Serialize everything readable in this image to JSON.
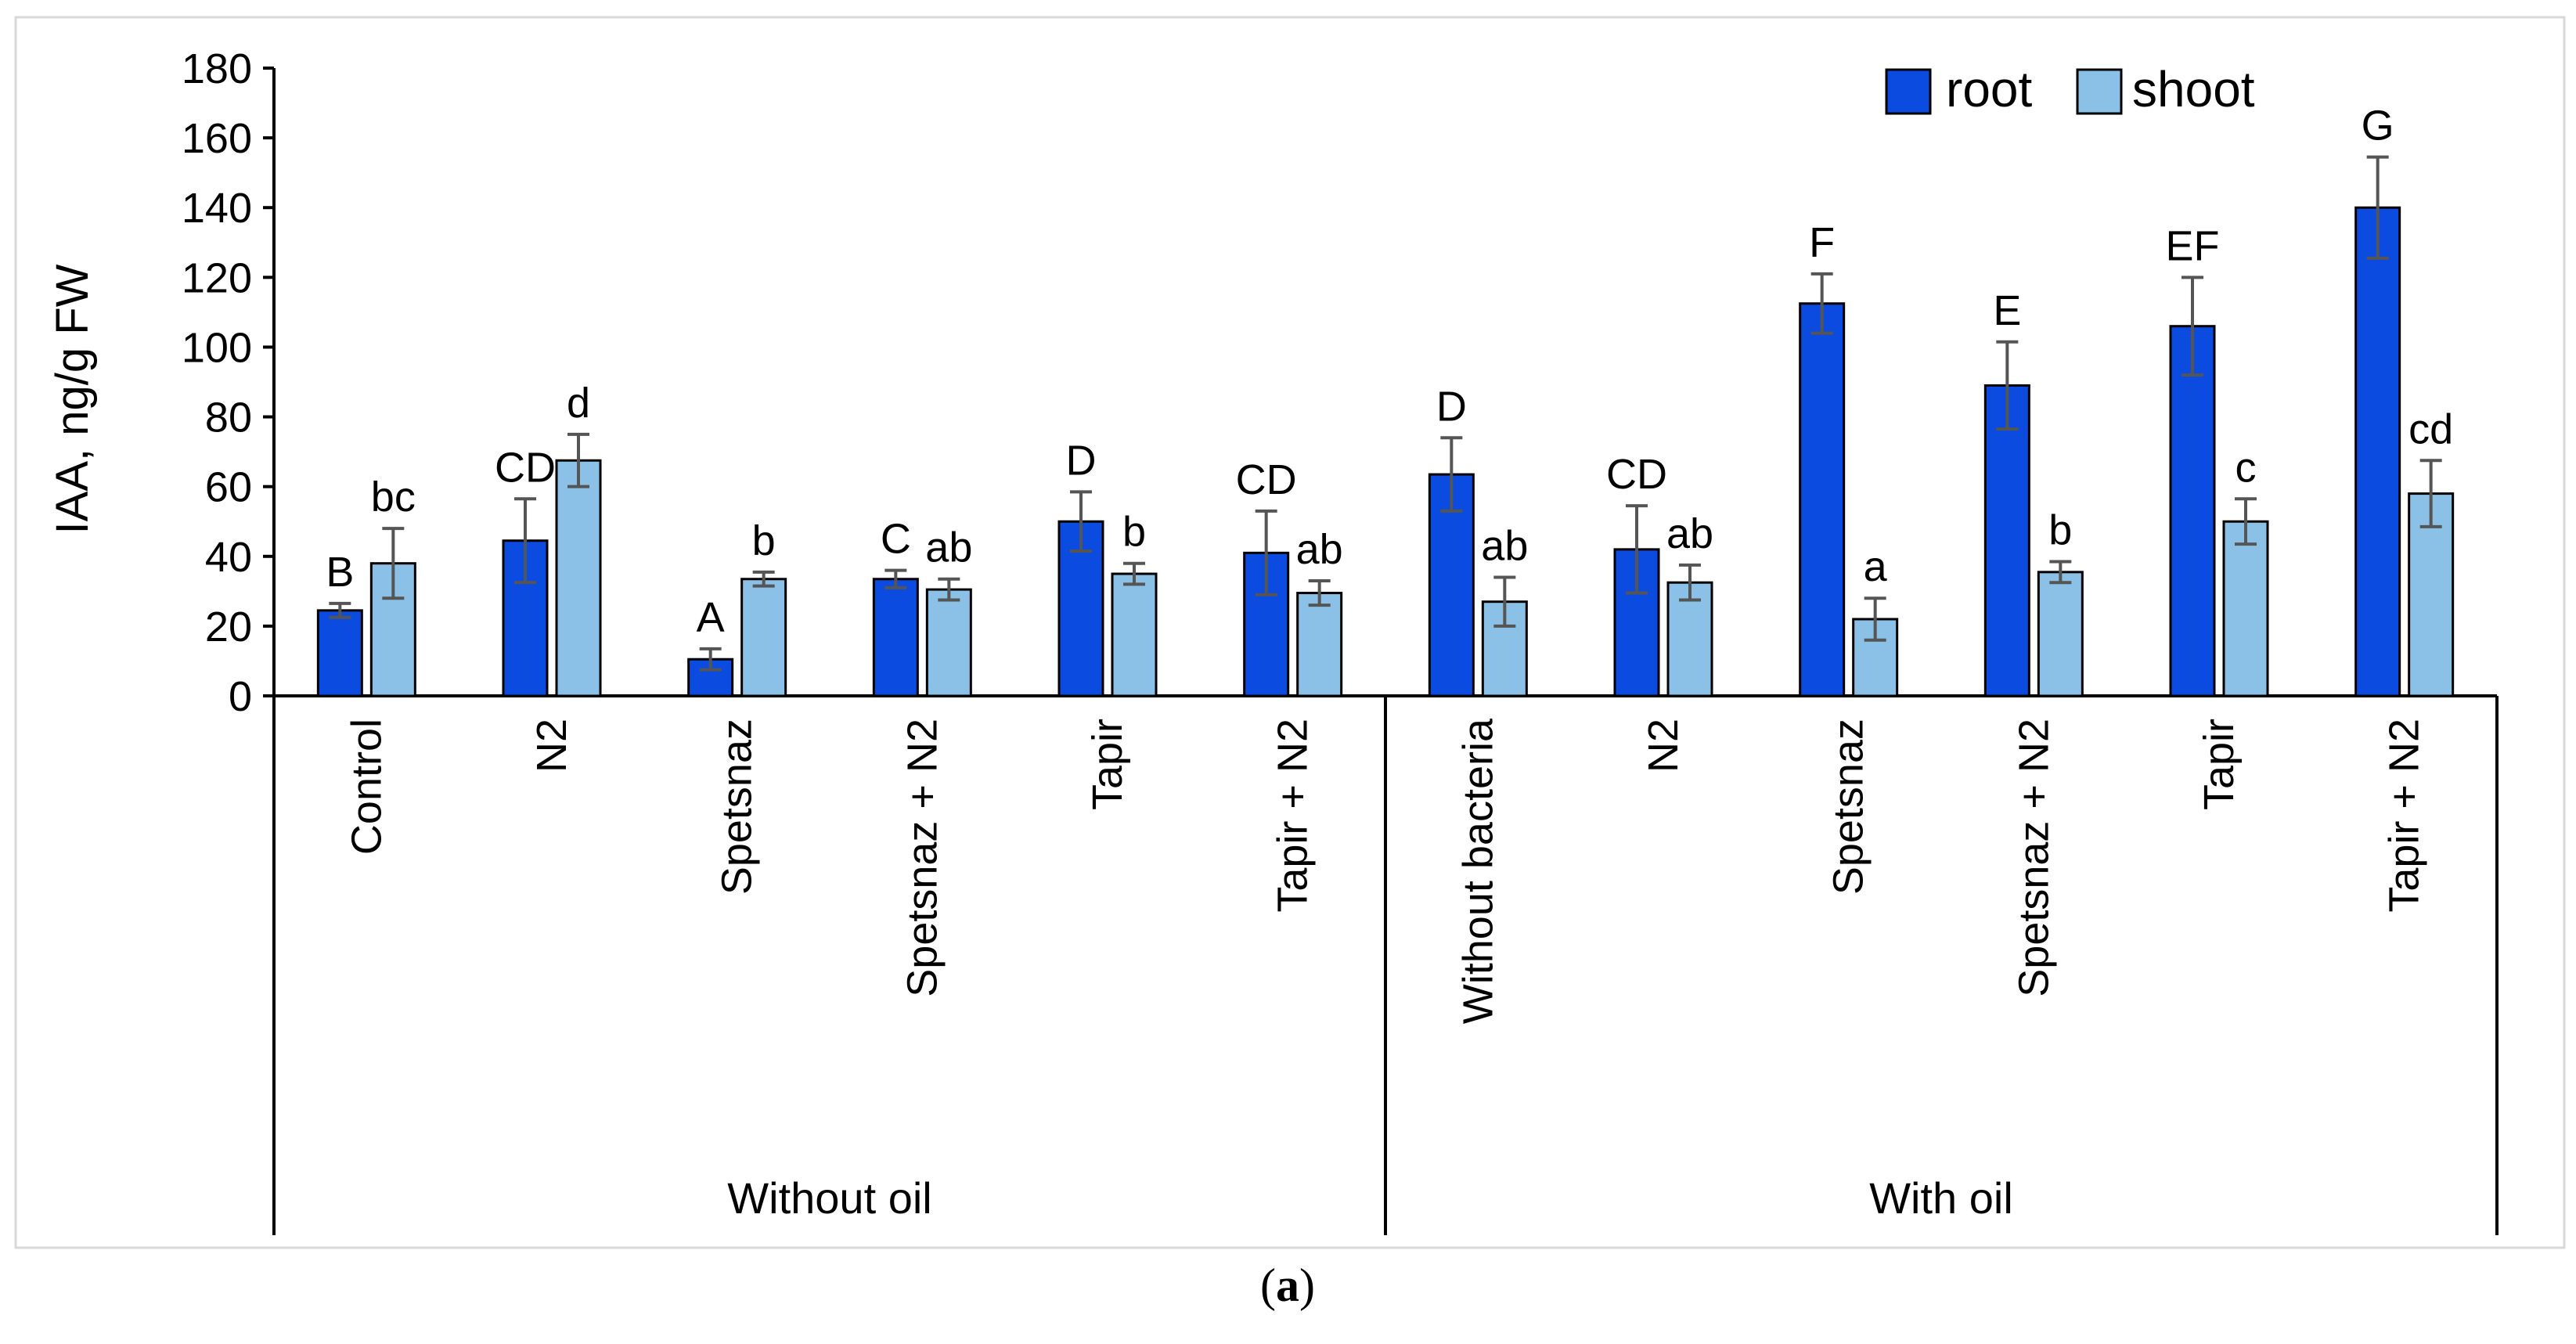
{
  "chart_data": {
    "type": "bar",
    "title": "",
    "ylabel": "IAA, ng/g FW",
    "xlabel": "",
    "ylim": [
      0,
      180
    ],
    "yticks": [
      0,
      20,
      40,
      60,
      80,
      100,
      120,
      140,
      160,
      180
    ],
    "legend_position": "top-right",
    "categories": [
      "Control",
      "N2",
      "Spetsnaz",
      "Spetsnaz + N2",
      "Tapir",
      "Tapir + N2",
      "Without bacteria",
      "N2",
      "Spetsnaz",
      "Spetsnaz + N2",
      "Tapir",
      "Tapir + N2"
    ],
    "groups": [
      {
        "label": "Without oil",
        "count": 6
      },
      {
        "label": "With oil",
        "count": 6
      }
    ],
    "series": [
      {
        "name": "root",
        "color": "#0B4BE0",
        "values": [
          24.5,
          44.5,
          10.5,
          33.5,
          50,
          41,
          63.5,
          42,
          112.5,
          89,
          106,
          140
        ],
        "errors": [
          2,
          12,
          3,
          2.5,
          8.5,
          12,
          10.5,
          12.5,
          8.5,
          12.5,
          14,
          14.5
        ],
        "letters": [
          "B",
          "CD",
          "A",
          "C",
          "D",
          "CD",
          "D",
          "CD",
          "F",
          "E",
          "EF",
          "G"
        ]
      },
      {
        "name": "shoot",
        "color": "#8BC1E6",
        "values": [
          38,
          67.5,
          33.5,
          30.5,
          35,
          29.5,
          27,
          32.5,
          22,
          35.5,
          50,
          58
        ],
        "errors": [
          10,
          7.5,
          2,
          3,
          3,
          3.5,
          7,
          5,
          6,
          3,
          6.5,
          9.5
        ],
        "letters": [
          "bc",
          "d",
          "b",
          "ab",
          "b",
          "ab",
          "ab",
          "ab",
          "a",
          "b",
          "c",
          "cd"
        ]
      }
    ]
  },
  "caption": {
    "open": "(",
    "letter": "a",
    "close": ")"
  }
}
